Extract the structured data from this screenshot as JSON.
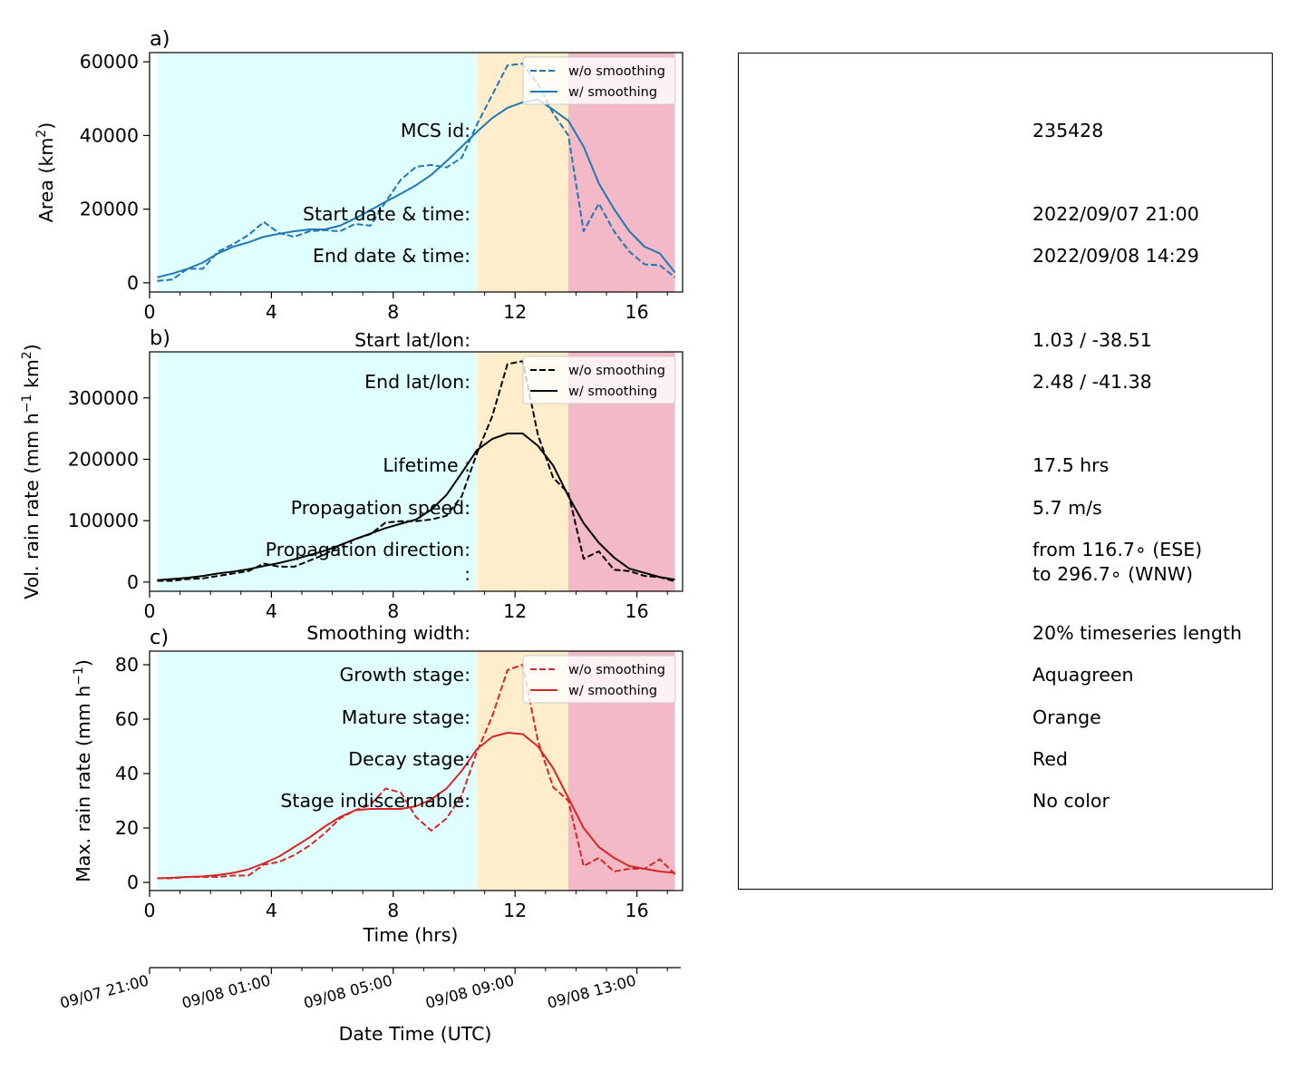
{
  "chart_data": [
    {
      "panel_label": "a)",
      "type": "line",
      "ylabel": "Area  (km",
      "ylabel_sup": "2",
      "ylabel_end": ")",
      "xlim": [
        0,
        17.5
      ],
      "ylim": [
        -2500,
        62500
      ],
      "yticks": [
        0,
        20000,
        40000,
        60000
      ],
      "xticks": [
        0,
        4,
        8,
        12,
        16
      ],
      "color": "#1f77b4",
      "legend_position": "upper-right",
      "series": [
        {
          "name": "w/o smoothing",
          "style": "dashed",
          "x": [
            0.25,
            0.75,
            1.25,
            1.75,
            2.25,
            2.75,
            3.25,
            3.75,
            4.25,
            4.75,
            5.25,
            5.75,
            6.25,
            6.75,
            7.25,
            7.75,
            8.25,
            8.75,
            9.25,
            9.75,
            10.25,
            10.75,
            11.25,
            11.75,
            12.25,
            12.75,
            13.25,
            13.75,
            14.25,
            14.75,
            15.25,
            15.75,
            16.25,
            16.75,
            17.25
          ],
          "values": [
            500,
            900,
            3800,
            3800,
            8500,
            10500,
            13000,
            16500,
            13500,
            12500,
            14000,
            14300,
            14000,
            16000,
            15500,
            22000,
            28000,
            31500,
            32000,
            31300,
            34000,
            43000,
            51000,
            59000,
            59500,
            54000,
            46000,
            40000,
            14000,
            21500,
            14000,
            8500,
            5000,
            4800,
            1500
          ]
        },
        {
          "name": "w/ smoothing",
          "style": "solid",
          "x": [
            0.25,
            0.75,
            1.25,
            1.75,
            2.25,
            2.75,
            3.25,
            3.75,
            4.25,
            4.75,
            5.25,
            5.75,
            6.25,
            6.75,
            7.25,
            7.75,
            8.25,
            8.75,
            9.25,
            9.75,
            10.25,
            10.75,
            11.25,
            11.75,
            12.25,
            12.75,
            13.25,
            13.75,
            14.25,
            14.75,
            15.25,
            15.75,
            16.25,
            16.75,
            17.25
          ],
          "values": [
            1500,
            2500,
            3800,
            5500,
            8000,
            9800,
            11000,
            12500,
            13300,
            14000,
            14500,
            14500,
            15500,
            17500,
            19700,
            22000,
            24200,
            26500,
            29300,
            33000,
            37000,
            41000,
            44700,
            47500,
            49000,
            49800,
            47000,
            44000,
            37000,
            27000,
            20000,
            14000,
            9800,
            8000,
            2800
          ]
        }
      ]
    },
    {
      "panel_label": "b)",
      "type": "line",
      "ylabel": "Vol. rain rate (mm h",
      "ylabel_sup": "−1",
      "ylabel_mid": " km",
      "ylabel_sup2": "2",
      "ylabel_end": ")",
      "xlim": [
        0,
        17.5
      ],
      "ylim": [
        -15000,
        375000
      ],
      "yticks": [
        0,
        100000,
        200000,
        300000
      ],
      "xticks": [
        0,
        4,
        8,
        12,
        16
      ],
      "color": "#000000",
      "legend_position": "upper-right",
      "series": [
        {
          "name": "w/o smoothing",
          "style": "dashed",
          "x": [
            0.25,
            0.75,
            1.25,
            1.75,
            2.25,
            2.75,
            3.25,
            3.75,
            4.25,
            4.75,
            5.25,
            5.75,
            6.25,
            6.75,
            7.25,
            7.75,
            8.25,
            8.75,
            9.25,
            9.75,
            10.25,
            10.75,
            11.25,
            11.75,
            12.25,
            12.75,
            13.25,
            13.75,
            14.25,
            14.75,
            15.25,
            15.75,
            16.25,
            16.75,
            17.25
          ],
          "values": [
            2000,
            2000,
            5000,
            6000,
            10000,
            14000,
            18000,
            30000,
            25000,
            25000,
            35000,
            45000,
            60000,
            70000,
            78000,
            97000,
            99000,
            99000,
            102000,
            108000,
            140000,
            210000,
            270000,
            355000,
            360000,
            240000,
            170000,
            145000,
            38000,
            50000,
            20000,
            18000,
            10000,
            8000,
            1000
          ]
        },
        {
          "name": "w/ smoothing",
          "style": "solid",
          "x": [
            0.25,
            0.75,
            1.25,
            1.75,
            2.25,
            2.75,
            3.25,
            3.75,
            4.25,
            4.75,
            5.25,
            5.75,
            6.25,
            6.75,
            7.25,
            7.75,
            8.25,
            8.75,
            9.25,
            9.75,
            10.25,
            10.75,
            11.25,
            11.75,
            12.25,
            12.75,
            13.25,
            13.75,
            14.25,
            14.75,
            15.25,
            15.75,
            16.25,
            16.75,
            17.25
          ],
          "values": [
            3000,
            5000,
            7000,
            10000,
            14000,
            17000,
            21000,
            26000,
            31000,
            37000,
            44000,
            51000,
            60000,
            70000,
            79000,
            88000,
            95000,
            102000,
            118000,
            142000,
            178000,
            215000,
            233000,
            242000,
            242000,
            222000,
            190000,
            140000,
            96000,
            64000,
            40000,
            22000,
            15000,
            8000,
            4000
          ]
        }
      ]
    },
    {
      "panel_label": "c)",
      "type": "line",
      "ylabel": "Max. rain rate  (mm h",
      "ylabel_sup": "−1",
      "ylabel_end": ")",
      "xlabel": "Time (hrs)",
      "xlim": [
        0,
        17.5
      ],
      "ylim": [
        -3,
        85
      ],
      "yticks": [
        0,
        20,
        40,
        60,
        80
      ],
      "xticks": [
        0,
        4,
        8,
        12,
        16
      ],
      "color": "#d62728",
      "legend_position": "upper-right",
      "series": [
        {
          "name": "w/o smoothing",
          "style": "dashed",
          "x": [
            0.25,
            0.75,
            1.25,
            1.75,
            2.25,
            2.75,
            3.25,
            3.75,
            4.25,
            4.75,
            5.25,
            5.75,
            6.25,
            6.75,
            7.25,
            7.75,
            8.25,
            8.75,
            9.25,
            9.75,
            10.25,
            10.75,
            11.25,
            11.75,
            12.25,
            12.75,
            13.25,
            13.75,
            14.25,
            14.75,
            15.25,
            15.75,
            16.25,
            16.75,
            17.25
          ],
          "values": [
            1.5,
            1.5,
            2,
            2,
            2,
            2.5,
            2.5,
            6.5,
            7.5,
            10,
            13.5,
            18,
            23.5,
            26.5,
            28.5,
            34.5,
            33,
            24,
            19,
            23.5,
            32,
            48,
            61,
            78,
            80,
            52,
            35,
            30,
            6,
            9,
            4,
            5,
            5,
            8.5,
            3
          ]
        },
        {
          "name": "w/ smoothing",
          "style": "solid",
          "x": [
            0.25,
            0.75,
            1.25,
            1.75,
            2.25,
            2.75,
            3.25,
            3.75,
            4.25,
            4.75,
            5.25,
            5.75,
            6.25,
            6.75,
            7.25,
            7.75,
            8.25,
            8.75,
            9.25,
            9.75,
            10.25,
            10.75,
            11.25,
            11.75,
            12.25,
            12.75,
            13.25,
            13.75,
            14.25,
            14.75,
            15.25,
            15.75,
            16.25,
            16.75,
            17.25
          ],
          "values": [
            1.5,
            1.7,
            2,
            2.2,
            2.7,
            3.5,
            4.8,
            7,
            9.5,
            13,
            16.5,
            20.5,
            24,
            26.5,
            27,
            27,
            27,
            28,
            30.5,
            34.5,
            41,
            49,
            53.5,
            55,
            54.5,
            50,
            42,
            31,
            20,
            13,
            9,
            6,
            5,
            4,
            3.5
          ]
        }
      ]
    }
  ],
  "stages": {
    "growth": {
      "from": 0.25,
      "to": 10.75,
      "color": "#e0ffff"
    },
    "mature": {
      "from": 10.75,
      "to": 13.75,
      "color": "#ffedcc"
    },
    "decay": {
      "from": 13.75,
      "to": 17.25,
      "color": "#f4b9c6"
    }
  },
  "datetime_axis": {
    "label": "Date Time (UTC)",
    "tick_labels": [
      {
        "t": 0,
        "label": "09/07 21:00"
      },
      {
        "t": 4,
        "label": "09/08 01:00"
      },
      {
        "t": 8,
        "label": "09/08 05:00"
      },
      {
        "t": 12,
        "label": "09/08 09:00"
      },
      {
        "t": 16,
        "label": "09/08 13:00"
      }
    ],
    "minor_step_hrs": 0.5
  },
  "info": {
    "rows": [
      {
        "label": "MCS id:",
        "value": "235428"
      },
      {
        "label": "Start date & time:",
        "value": "2022/09/07 21:00"
      },
      {
        "label": "End date & time:",
        "value": "2022/09/08 14:29"
      },
      {
        "label": "Start lat/lon:",
        "value": "1.03 / -38.51"
      },
      {
        "label": "End lat/lon:",
        "value": "2.48 / -41.38"
      },
      {
        "label": "Lifetime :",
        "value": "17.5 hrs"
      },
      {
        "label": "Propagation speed:",
        "value": "5.7 m/s"
      },
      {
        "label": "Propagation direction:",
        "value": "from 116.7∘ (ESE)"
      },
      {
        "label": ":",
        "value": "to   296.7∘ (WNW)"
      },
      {
        "label": "Smoothing width:",
        "value": "20% timeseries length"
      },
      {
        "label": "Growth stage:",
        "value": "Aquagreen"
      },
      {
        "label": "Mature stage:",
        "value": "Orange"
      },
      {
        "label": "Decay stage:",
        "value": "Red"
      },
      {
        "label": "Stage indiscernable:",
        "value": "No color"
      }
    ]
  }
}
